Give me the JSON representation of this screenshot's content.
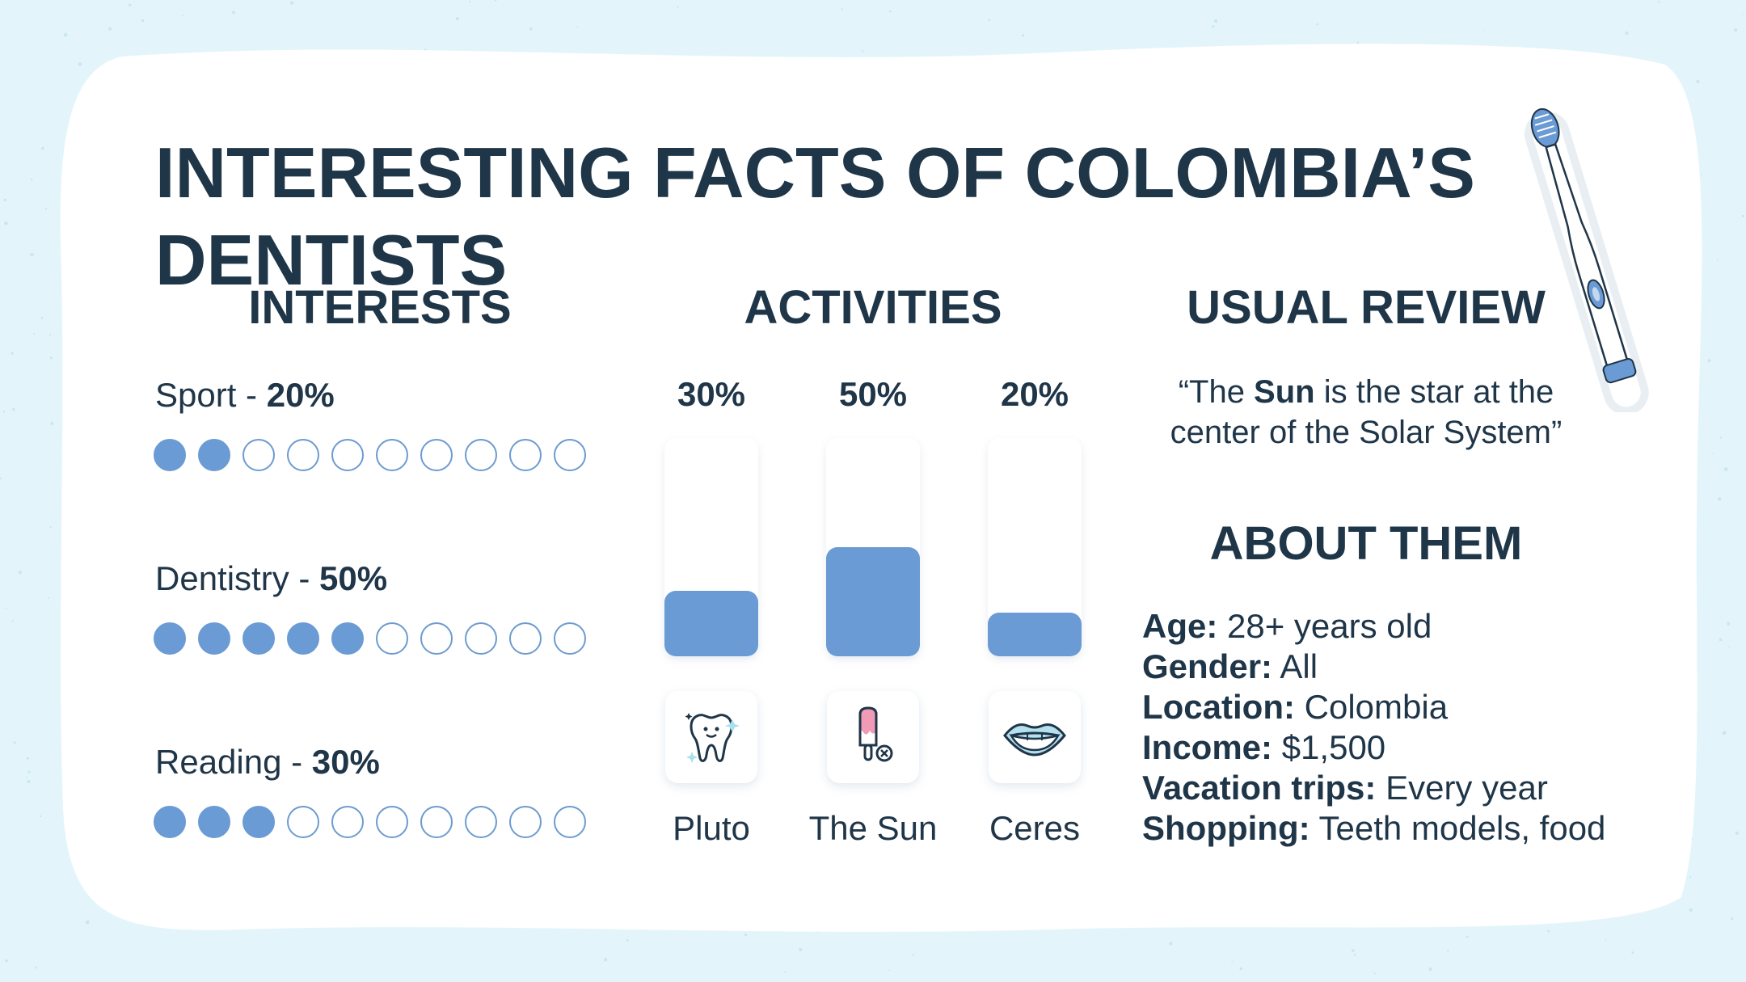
{
  "title": "INTERESTING FACTS OF COLOMBIA’S DENTISTS",
  "colors": {
    "accent": "#6a9bd4",
    "heading": "#1f3548",
    "background": "#e3f5fb",
    "card": "#ffffff"
  },
  "interests": {
    "heading": "INTERESTS",
    "items": [
      {
        "name": "Sport",
        "sep": " - ",
        "value": "20%",
        "filled": 2,
        "total": 10
      },
      {
        "name": "Dentistry",
        "sep": " - ",
        "value": "50%",
        "filled": 5,
        "total": 10
      },
      {
        "name": "Reading",
        "sep": " - ",
        "value": "30%",
        "filled": 3,
        "total": 10
      }
    ]
  },
  "activities": {
    "heading": "ACTIVITIES",
    "items": [
      {
        "percent": "30%",
        "level": 0.3,
        "name": "Pluto",
        "icon": "tooth-icon"
      },
      {
        "percent": "50%",
        "level": 0.5,
        "name": "The Sun",
        "icon": "popsicle-icon"
      },
      {
        "percent": "20%",
        "level": 0.2,
        "name": "Ceres",
        "icon": "mouth-icon"
      }
    ]
  },
  "review": {
    "heading": "USUAL REVIEW",
    "open": "“The ",
    "bold": "Sun",
    "rest": " is the star at the center of the Solar System”"
  },
  "about": {
    "heading": "ABOUT THEM",
    "rows": [
      {
        "label": "Age:",
        "value": " 28+ years old"
      },
      {
        "label": "Gender:",
        "value": " All"
      },
      {
        "label": "Location:",
        "value": " Colombia"
      },
      {
        "label": "Income:",
        "value": " $1,500"
      },
      {
        "label": "Vacation trips:",
        "value": " Every year"
      },
      {
        "label": "Shopping:",
        "value": " Teeth models, food"
      }
    ]
  },
  "decor": {
    "toothbrush": "toothbrush-icon"
  }
}
